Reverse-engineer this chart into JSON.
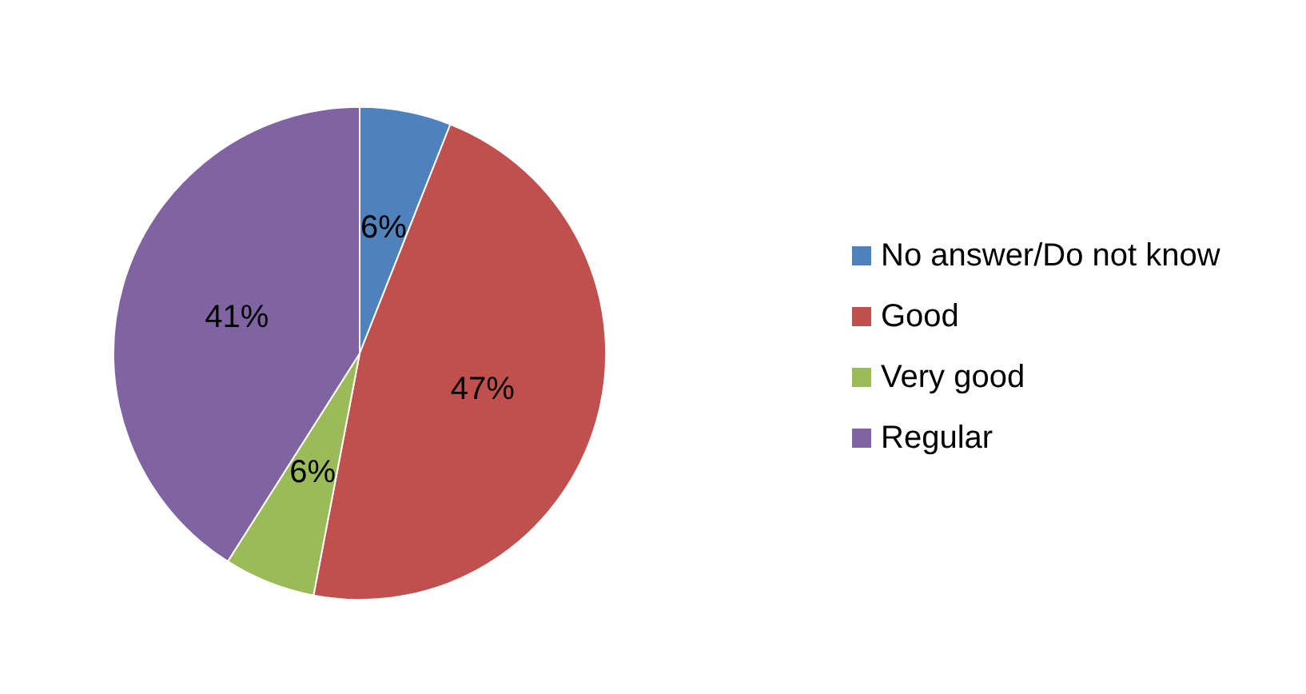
{
  "chart_data": {
    "type": "pie",
    "categories": [
      "No answer/Do not know",
      "Good",
      "Very good",
      "Regular"
    ],
    "values": [
      6,
      47,
      6,
      41
    ],
    "value_labels": [
      "6%",
      "47%",
      "6%",
      "41%"
    ],
    "colors": [
      "#4f81bd",
      "#c0504d",
      "#9bbb59",
      "#8064a2"
    ],
    "legend": "right"
  }
}
